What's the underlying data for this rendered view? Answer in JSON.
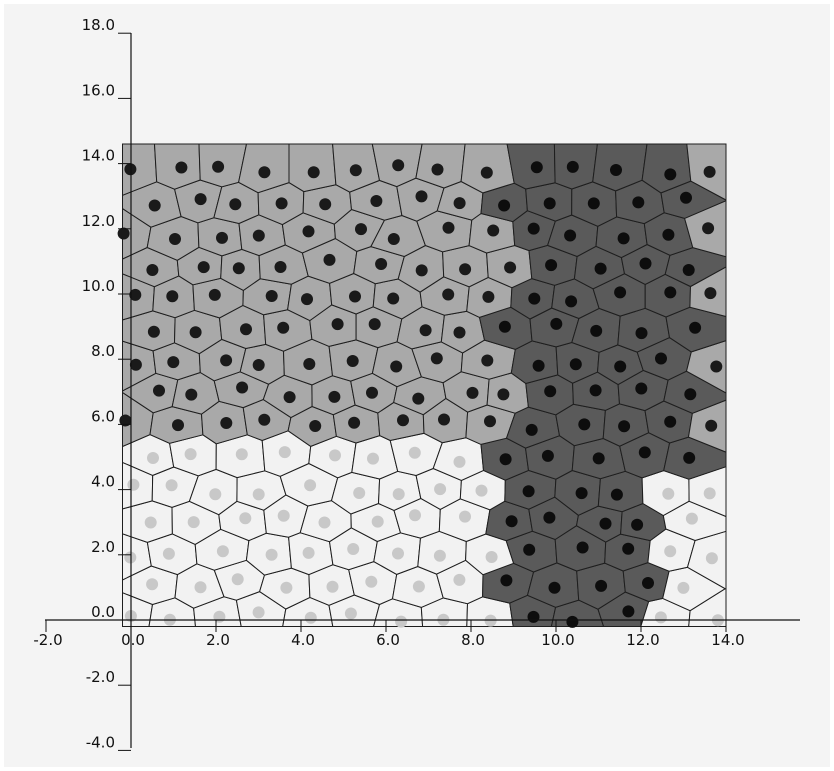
{
  "chart_data": {
    "type": "scatter",
    "title": "",
    "xlabel": "",
    "ylabel": "",
    "xlim": [
      -2.0,
      15.5
    ],
    "ylim": [
      -4.0,
      18.0
    ],
    "grid": false,
    "x_ticks": [
      "-2.0",
      "0.0",
      "2.0",
      "4.0",
      "6.0",
      "8.0",
      "10.0",
      "12.0",
      "14.0"
    ],
    "y_ticks": [
      "18.0",
      "16.0",
      "14.0",
      "12.0",
      "10.0",
      "8.0",
      "6.0",
      "4.0",
      "2.0",
      "0.0",
      "-2.0",
      "-4.0"
    ],
    "lattice": {
      "x_start": 0.0,
      "x_spacing": 1.05,
      "row_spacing": 0.98,
      "rows": 15
    },
    "regions": [
      {
        "name": "",
        "cell_color": "#f2f2f2",
        "nucleus_color": "#c8c8c8",
        "description_bounds": "lower-left, x < ~8.5, y < ~5.5"
      },
      {
        "name": "",
        "cell_color": "#a9a9a9",
        "nucleus_color": "#1a1a1a",
        "description_bounds": "upper-left, x < ~9, y > ~5.5"
      },
      {
        "name": "",
        "cell_color": "#5a5a5a",
        "nucleus_color": "#0d0d0d",
        "description_bounds": "right band, x ~ 9 to 13.5"
      }
    ],
    "colors": {
      "background": "#f4f4f4",
      "axis": "#111111",
      "cell_edge": "#1e1e1e"
    }
  }
}
